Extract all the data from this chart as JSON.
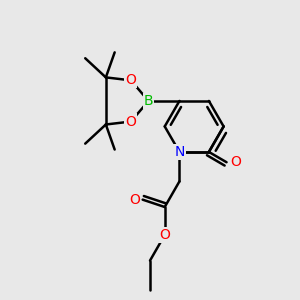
{
  "bg_color": "#e8e8e8",
  "bond_color": "#000000",
  "bond_width": 1.8,
  "atom_colors": {
    "N": "#0000ff",
    "O": "#ff0000",
    "B": "#00bb00",
    "C": "#000000"
  },
  "font_size": 10,
  "xlim": [
    0,
    10
  ],
  "ylim": [
    0,
    10
  ]
}
